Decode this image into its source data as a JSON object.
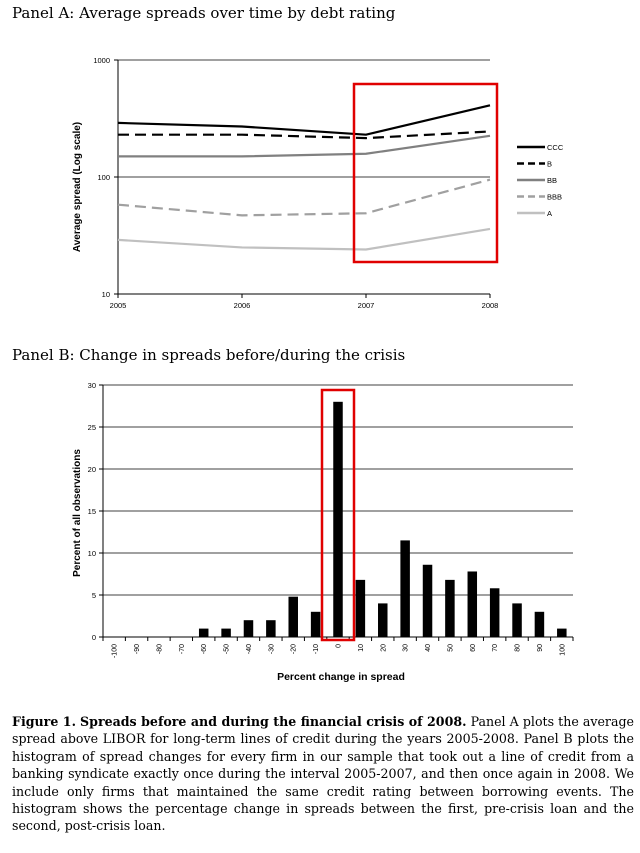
{
  "panel_a_title": "Panel A: Average spreads over time by debt rating",
  "panel_b_title": "Panel B: Change in spreads before/during the crisis",
  "caption": {
    "label": "Figure 1.",
    "heading": "Spreads before and during the financial crisis of 2008.",
    "text": "Panel A plots the average spread above LIBOR for long-term lines of credit during the years 2005-2008. Panel B plots the histogram of spread changes for every firm in our sample that took out a line of credit from a banking syndicate exactly once during the interval 2005-2007, and then once again in 2008. We include only firms that maintained the same credit rating between borrowing events. The histogram shows the percentage change in spreads between the first, pre-crisis loan and the second, post-crisis loan."
  },
  "colors": {
    "highlight": "#e00000",
    "bar": "#000000",
    "grid": "#000000"
  },
  "chart_data": [
    {
      "type": "line",
      "title": "Panel A: Average spreads over time by debt rating",
      "xlabel": "",
      "ylabel": "Average spread (Log scale)",
      "yscale": "log",
      "ylim": [
        10,
        1000
      ],
      "yticks": [
        "10",
        "100",
        "1000"
      ],
      "x": [
        "2005",
        "2006",
        "2007",
        "2008"
      ],
      "legend": "right",
      "grid": "horizontal",
      "highlight_x_range": [
        "2007",
        "2008"
      ],
      "series": [
        {
          "name": "CCC",
          "values": [
            290,
            270,
            230,
            410
          ],
          "color": "#000000",
          "dash": "solid"
        },
        {
          "name": "B",
          "values": [
            230,
            230,
            215,
            245
          ],
          "color": "#000000",
          "dash": "dashed"
        },
        {
          "name": "BB",
          "values": [
            150,
            150,
            158,
            225
          ],
          "color": "#808080",
          "dash": "solid"
        },
        {
          "name": "BBB",
          "values": [
            58,
            47,
            49,
            95
          ],
          "color": "#a0a0a0",
          "dash": "dashed"
        },
        {
          "name": "A",
          "values": [
            29,
            25,
            24,
            36
          ],
          "color": "#c0c0c0",
          "dash": "solid"
        }
      ]
    },
    {
      "type": "bar",
      "title": "Panel B: Change in spreads before/during the crisis",
      "xlabel": "Percent change in spread",
      "ylabel": "Percent of all observations",
      "ylim": [
        0,
        30
      ],
      "yticks": [
        "0",
        "5",
        "10",
        "15",
        "20",
        "25",
        "30"
      ],
      "grid": "horizontal",
      "highlight_category": "0",
      "categories": [
        "-100",
        "-90",
        "-80",
        "-70",
        "-60",
        "-50",
        "-40",
        "-30",
        "-20",
        "-10",
        "0",
        "10",
        "20",
        "30",
        "40",
        "50",
        "60",
        "70",
        "80",
        "90",
        "100"
      ],
      "values": [
        0,
        0,
        0,
        0,
        1,
        1,
        2,
        2,
        4.8,
        3,
        28,
        6.8,
        4,
        11.5,
        8.6,
        6.8,
        7.8,
        5.8,
        4,
        3,
        1
      ]
    }
  ]
}
